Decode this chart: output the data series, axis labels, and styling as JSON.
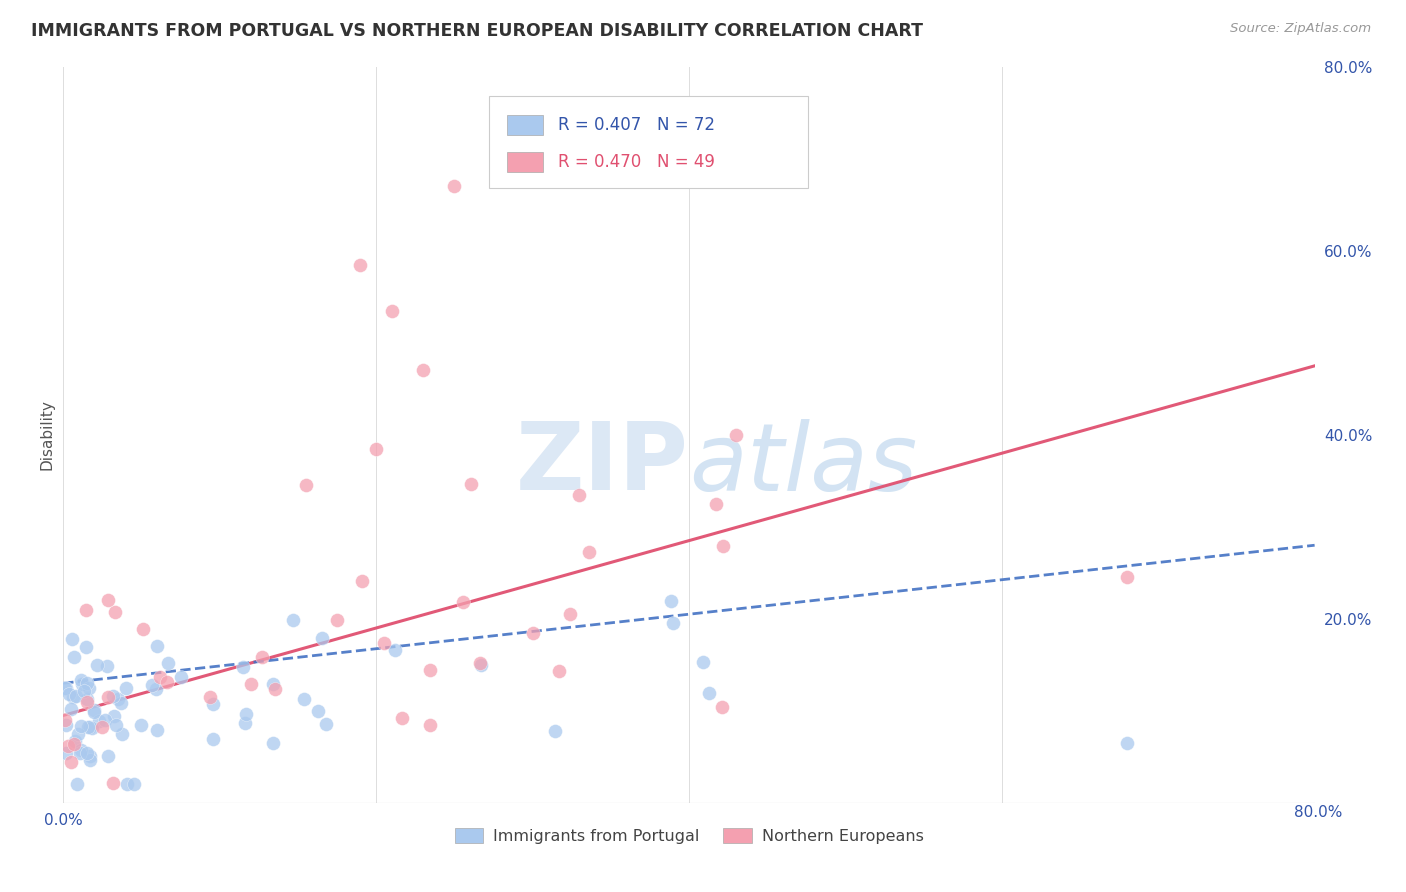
{
  "title": "IMMIGRANTS FROM PORTUGAL VS NORTHERN EUROPEAN DISABILITY CORRELATION CHART",
  "source": "Source: ZipAtlas.com",
  "ylabel": "Disability",
  "xlim": [
    0.0,
    0.8
  ],
  "ylim": [
    0.0,
    0.8
  ],
  "xticks": [
    0.0,
    0.2,
    0.4,
    0.6,
    0.8
  ],
  "yticks": [
    0.2,
    0.4,
    0.6,
    0.8
  ],
  "xticklabels": [
    "0.0%",
    "",
    "",
    "",
    "80.0%"
  ],
  "yticklabels": [
    "20.0%",
    "40.0%",
    "60.0%",
    "80.0%"
  ],
  "series1_name": "Immigrants from Portugal",
  "series2_name": "Northern Europeans",
  "series1_color": "#aac9ee",
  "series2_color": "#f4a0b0",
  "series1_R": 0.407,
  "series1_N": 72,
  "series2_R": 0.47,
  "series2_N": 49,
  "legend_color": "#3355aa",
  "trendline1_color": "#4472c4",
  "trendline2_color": "#e05070",
  "watermark_color": "#dce8f5",
  "background_color": "#ffffff",
  "grid_color": "#dddddd"
}
